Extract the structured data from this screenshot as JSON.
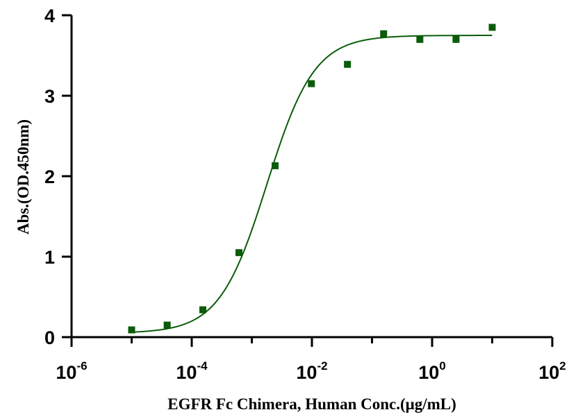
{
  "chart_data": {
    "type": "scatter",
    "title": "",
    "xlabel": "EGFR Fc Chimera, Human Conc.(μg/mL)",
    "ylabel": "Abs.(OD.450nm)",
    "x_scale": "log10",
    "xlim": [
      1e-06,
      100
    ],
    "ylim": [
      0,
      4
    ],
    "x_ticks": [
      {
        "base": "10",
        "exp": "-6",
        "value": 1e-06
      },
      {
        "base": "10",
        "exp": "-4",
        "value": 0.0001
      },
      {
        "base": "10",
        "exp": "-2",
        "value": 0.01
      },
      {
        "base": "10",
        "exp": "0",
        "value": 1
      },
      {
        "base": "10",
        "exp": "2",
        "value": 100
      }
    ],
    "y_ticks": [
      "0",
      "1",
      "2",
      "3",
      "4"
    ],
    "grid": false,
    "color": "#0a5c0a",
    "series": [
      {
        "x": [
          1e-05,
          3.9e-05,
          0.000153,
          0.00061,
          0.00244,
          0.0098,
          0.039,
          0.156,
          0.625,
          2.5,
          10
        ],
        "y": [
          0.09,
          0.15,
          0.34,
          1.05,
          2.13,
          3.15,
          3.39,
          3.77,
          3.7,
          3.7,
          3.85
        ]
      }
    ],
    "fit": {
      "type": "4PL",
      "bottom": 0.05,
      "top": 3.75,
      "ec50": 0.00178,
      "hill": 1.1,
      "x_range": [
        1e-05,
        10
      ]
    }
  }
}
